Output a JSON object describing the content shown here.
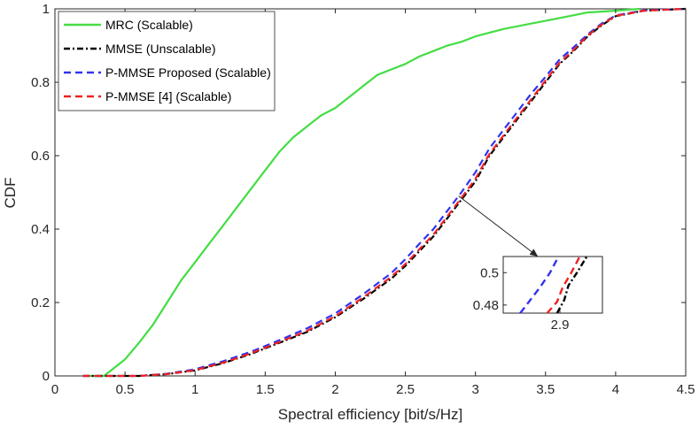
{
  "chart_data": {
    "type": "line",
    "title": "",
    "xlabel": "Spectral efficiency [bit/s/Hz]",
    "ylabel": "CDF",
    "xlim": [
      0,
      4.5
    ],
    "ylim": [
      0,
      1
    ],
    "xticks": [
      "0",
      "0.5",
      "1",
      "1.5",
      "2",
      "2.5",
      "3",
      "3.5",
      "4",
      "4.5"
    ],
    "yticks": [
      "0",
      "0.2",
      "0.4",
      "0.6",
      "0.8",
      "1"
    ],
    "legend_position": "top-left",
    "series": [
      {
        "name": "MRC (Scalable)",
        "color": "#44dd44",
        "style": "solid",
        "x": [
          0.22,
          0.35,
          0.4,
          0.5,
          0.6,
          0.7,
          0.8,
          0.9,
          1.0,
          1.1,
          1.2,
          1.3,
          1.4,
          1.5,
          1.6,
          1.7,
          1.8,
          1.9,
          2.0,
          2.1,
          2.2,
          2.3,
          2.4,
          2.5,
          2.6,
          2.7,
          2.8,
          2.9,
          3.0,
          3.2,
          3.4,
          3.6,
          3.8,
          4.0,
          4.17
        ],
        "y": [
          0,
          0.0,
          0.015,
          0.045,
          0.09,
          0.14,
          0.2,
          0.26,
          0.31,
          0.36,
          0.41,
          0.46,
          0.51,
          0.56,
          0.61,
          0.65,
          0.68,
          0.71,
          0.73,
          0.76,
          0.79,
          0.82,
          0.835,
          0.85,
          0.87,
          0.885,
          0.9,
          0.91,
          0.925,
          0.945,
          0.96,
          0.975,
          0.99,
          0.995,
          1.0
        ]
      },
      {
        "name": "MMSE (Unscalable)",
        "color": "#000000",
        "style": "dash-dot",
        "x": [
          0.2,
          0.4,
          0.6,
          0.8,
          1.0,
          1.2,
          1.4,
          1.6,
          1.8,
          2.0,
          2.2,
          2.4,
          2.5,
          2.6,
          2.7,
          2.8,
          2.9,
          3.0,
          3.1,
          3.2,
          3.3,
          3.4,
          3.5,
          3.6,
          3.7,
          3.8,
          3.9,
          4.0,
          4.2,
          4.5
        ],
        "y": [
          0,
          0,
          0.0,
          0.005,
          0.015,
          0.035,
          0.06,
          0.09,
          0.12,
          0.16,
          0.21,
          0.265,
          0.3,
          0.34,
          0.38,
          0.43,
          0.48,
          0.53,
          0.6,
          0.65,
          0.7,
          0.75,
          0.8,
          0.85,
          0.885,
          0.925,
          0.955,
          0.98,
          0.995,
          1.0
        ]
      },
      {
        "name": "P-MMSE Proposed (Scalable)",
        "color": "#3333ee",
        "style": "dashed",
        "x": [
          0.2,
          0.4,
          0.6,
          0.8,
          1.0,
          1.2,
          1.4,
          1.6,
          1.8,
          2.0,
          2.2,
          2.4,
          2.5,
          2.6,
          2.7,
          2.8,
          2.9,
          3.0,
          3.1,
          3.2,
          3.3,
          3.4,
          3.5,
          3.6,
          3.7,
          3.8,
          3.9,
          4.0,
          4.2,
          4.5
        ],
        "y": [
          0,
          0,
          0.0,
          0.006,
          0.018,
          0.04,
          0.066,
          0.097,
          0.13,
          0.17,
          0.223,
          0.28,
          0.318,
          0.36,
          0.4,
          0.45,
          0.5,
          0.555,
          0.62,
          0.67,
          0.72,
          0.77,
          0.815,
          0.862,
          0.895,
          0.93,
          0.96,
          0.982,
          0.996,
          1.0
        ]
      },
      {
        "name": "P-MMSE [4] (Scalable)",
        "color": "#ee2222",
        "style": "dashed",
        "x": [
          0.2,
          0.4,
          0.6,
          0.8,
          1.0,
          1.2,
          1.4,
          1.6,
          1.8,
          2.0,
          2.2,
          2.4,
          2.5,
          2.6,
          2.7,
          2.8,
          2.9,
          3.0,
          3.1,
          3.2,
          3.3,
          3.4,
          3.5,
          3.6,
          3.7,
          3.8,
          3.9,
          4.0,
          4.2,
          4.5
        ],
        "y": [
          0,
          0,
          0.0,
          0.005,
          0.016,
          0.036,
          0.062,
          0.092,
          0.123,
          0.163,
          0.214,
          0.27,
          0.305,
          0.345,
          0.385,
          0.435,
          0.485,
          0.537,
          0.605,
          0.655,
          0.705,
          0.755,
          0.805,
          0.853,
          0.888,
          0.927,
          0.957,
          0.981,
          0.995,
          1.0
        ]
      }
    ],
    "inset": {
      "xlim": [
        2.86,
        2.93
      ],
      "ylim": [
        0.475,
        0.51
      ],
      "xticks": [
        "2.9"
      ],
      "yticks": [
        "0.48",
        "0.5"
      ],
      "zoom_target": {
        "x": 2.88,
        "y": 0.49
      },
      "lines": [
        {
          "series": "MMSE (Unscalable)",
          "x": [
            2.898,
            2.903,
            2.906,
            2.912,
            2.919
          ],
          "y": [
            0.475,
            0.483,
            0.492,
            0.5,
            0.51
          ]
        },
        {
          "series": "P-MMSE Proposed (Scalable)",
          "x": [
            2.872,
            2.879,
            2.886,
            2.893,
            2.899
          ],
          "y": [
            0.475,
            0.483,
            0.491,
            0.5,
            0.51
          ]
        },
        {
          "series": "P-MMSE [4] (Scalable)",
          "x": [
            2.891,
            2.898,
            2.902,
            2.908,
            2.914
          ],
          "y": [
            0.475,
            0.482,
            0.491,
            0.5,
            0.51
          ]
        }
      ]
    }
  }
}
